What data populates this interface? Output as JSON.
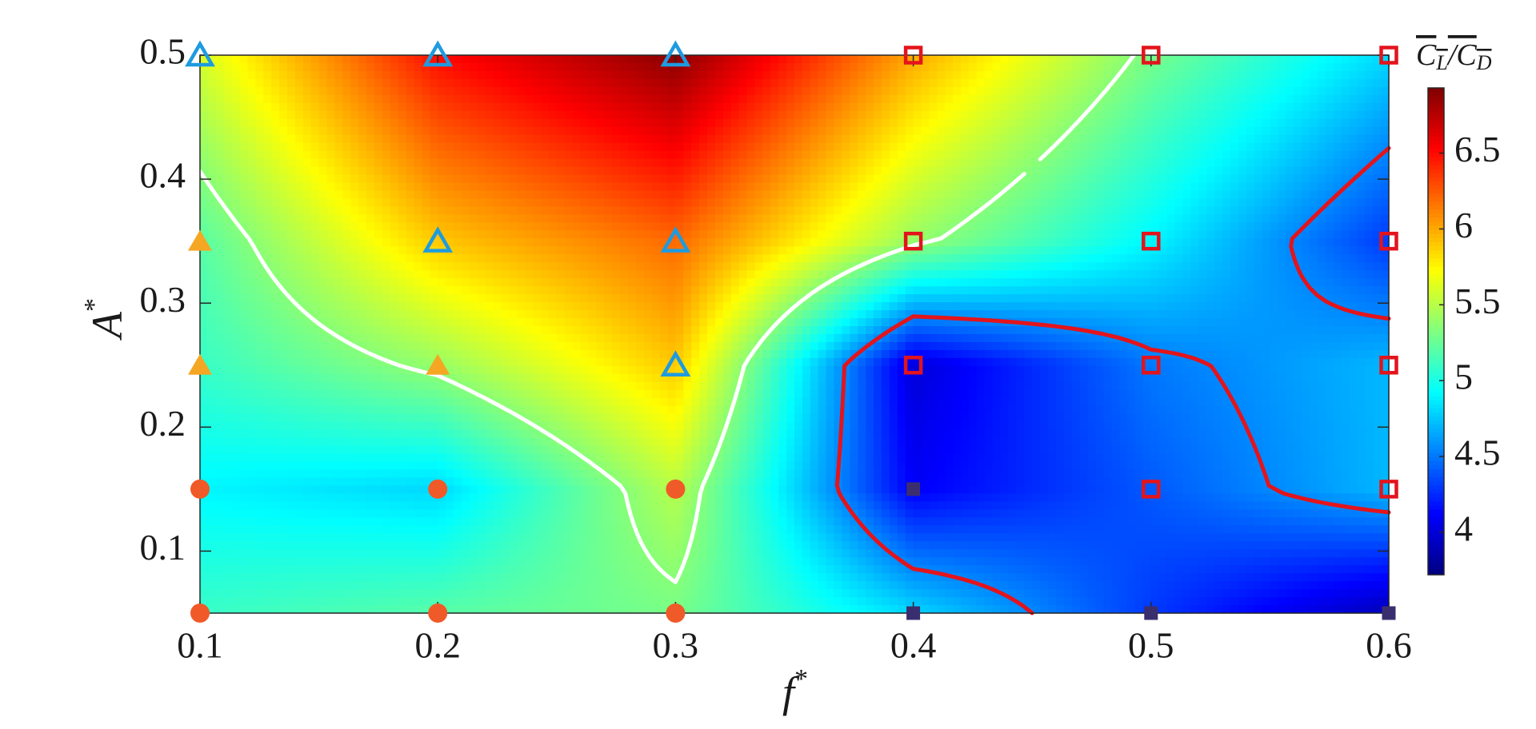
{
  "chart_data": {
    "type": "heatmap",
    "x": [
      0.1,
      0.2,
      0.3,
      0.4,
      0.5,
      0.6
    ],
    "y": [
      0.05,
      0.15,
      0.25,
      0.35,
      0.5
    ],
    "z": [
      [
        5.1,
        5.2,
        5.3,
        4.8,
        4.3,
        3.9
      ],
      [
        4.9,
        4.8,
        5.5,
        4.1,
        4.4,
        4.7
      ],
      [
        5.1,
        5.4,
        5.9,
        4.0,
        4.5,
        4.7
      ],
      [
        5.2,
        5.9,
        6.2,
        5.4,
        4.9,
        4.3
      ],
      [
        5.6,
        6.5,
        6.9,
        6.0,
        5.3,
        4.8
      ]
    ],
    "colormap": "jet",
    "clim": [
      3.72,
      6.93
    ],
    "xlim": [
      0.1,
      0.6
    ],
    "ylim": [
      0.05,
      0.5
    ],
    "xticks": [
      0.1,
      0.2,
      0.3,
      0.4,
      0.5,
      0.6
    ],
    "yticks": [
      0.1,
      0.2,
      0.3,
      0.4,
      0.5
    ],
    "xlabel": [
      "f",
      "*"
    ],
    "ylabel": [
      "A",
      "*"
    ],
    "colorbar_label": [
      "C",
      "L",
      "/C",
      "D"
    ],
    "colorbar_ticks": [
      4,
      4.5,
      5,
      5.5,
      6,
      6.5
    ],
    "contours": [
      {
        "level": 5.35,
        "color": "#ffffff"
      },
      {
        "level": 4.55,
        "color": "#e3141c"
      }
    ],
    "markers": [
      {
        "symbol": "circle",
        "filled": true,
        "color": "#f05a28",
        "points": [
          [
            0.1,
            0.05
          ],
          [
            0.2,
            0.05
          ],
          [
            0.3,
            0.05
          ],
          [
            0.1,
            0.15
          ],
          [
            0.2,
            0.15
          ],
          [
            0.3,
            0.15
          ]
        ]
      },
      {
        "symbol": "triangle",
        "filled": true,
        "color": "#f5a623",
        "points": [
          [
            0.1,
            0.25
          ],
          [
            0.2,
            0.25
          ],
          [
            0.1,
            0.35
          ]
        ]
      },
      {
        "symbol": "triangle",
        "filled": false,
        "color": "#1e9be0",
        "points": [
          [
            0.1,
            0.5
          ],
          [
            0.2,
            0.5
          ],
          [
            0.3,
            0.5
          ],
          [
            0.2,
            0.35
          ],
          [
            0.3,
            0.35
          ],
          [
            0.3,
            0.25
          ]
        ]
      },
      {
        "symbol": "square",
        "filled": false,
        "color": "#e3141c",
        "points": [
          [
            0.4,
            0.5
          ],
          [
            0.5,
            0.5
          ],
          [
            0.6,
            0.5
          ],
          [
            0.4,
            0.35
          ],
          [
            0.5,
            0.35
          ],
          [
            0.6,
            0.35
          ],
          [
            0.4,
            0.25
          ],
          [
            0.5,
            0.25
          ],
          [
            0.6,
            0.25
          ],
          [
            0.5,
            0.15
          ],
          [
            0.6,
            0.15
          ]
        ]
      },
      {
        "symbol": "square",
        "filled": true,
        "color": "#3b2e6e",
        "points": [
          [
            0.4,
            0.15
          ],
          [
            0.4,
            0.05
          ],
          [
            0.5,
            0.05
          ],
          [
            0.6,
            0.05
          ]
        ]
      }
    ]
  }
}
